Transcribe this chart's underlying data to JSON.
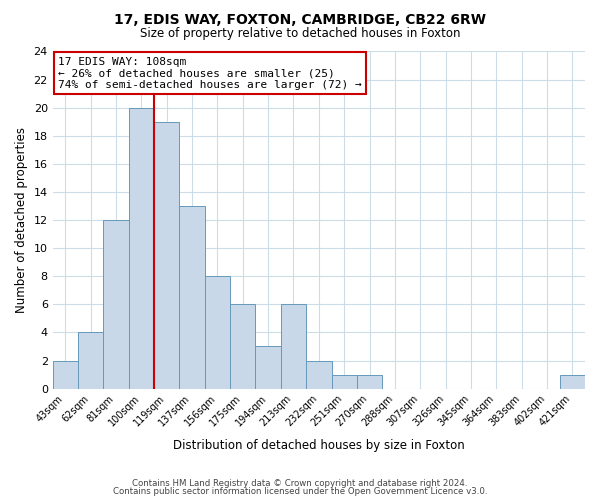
{
  "title": "17, EDIS WAY, FOXTON, CAMBRIDGE, CB22 6RW",
  "subtitle": "Size of property relative to detached houses in Foxton",
  "xlabel": "Distribution of detached houses by size in Foxton",
  "ylabel": "Number of detached properties",
  "bin_labels": [
    "43sqm",
    "62sqm",
    "81sqm",
    "100sqm",
    "119sqm",
    "137sqm",
    "156sqm",
    "175sqm",
    "194sqm",
    "213sqm",
    "232sqm",
    "251sqm",
    "270sqm",
    "288sqm",
    "307sqm",
    "326sqm",
    "345sqm",
    "364sqm",
    "383sqm",
    "402sqm",
    "421sqm"
  ],
  "bar_values": [
    2,
    4,
    12,
    20,
    19,
    13,
    8,
    6,
    3,
    6,
    2,
    1,
    1,
    0,
    0,
    0,
    0,
    0,
    0,
    0,
    1
  ],
  "bar_color": "#c8d8e8",
  "bar_edge_color": "#6699bb",
  "vline_x_index": 3,
  "vline_color": "#cc0000",
  "ylim": [
    0,
    24
  ],
  "yticks": [
    0,
    2,
    4,
    6,
    8,
    10,
    12,
    14,
    16,
    18,
    20,
    22,
    24
  ],
  "annotation_title": "17 EDIS WAY: 108sqm",
  "annotation_line1": "← 26% of detached houses are smaller (25)",
  "annotation_line2": "74% of semi-detached houses are larger (72) →",
  "annotation_box_color": "#ffffff",
  "annotation_box_edge": "#cc0000",
  "footer1": "Contains HM Land Registry data © Crown copyright and database right 2024.",
  "footer2": "Contains public sector information licensed under the Open Government Licence v3.0.",
  "background_color": "#ffffff",
  "grid_color": "#ccdde8"
}
